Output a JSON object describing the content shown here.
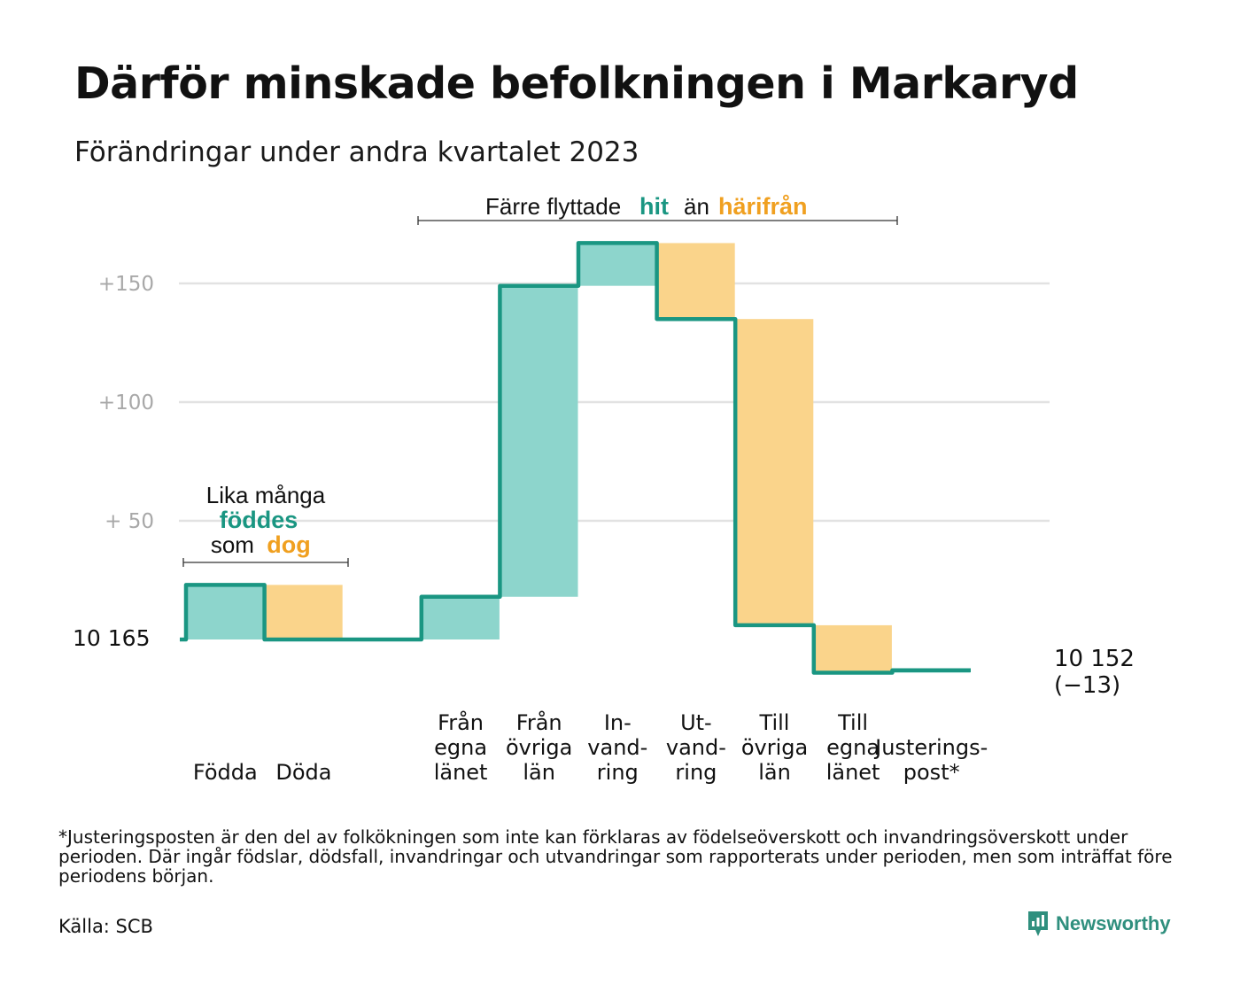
{
  "title": "Därför minskade befolkningen i Markaryd",
  "subtitle": "Förändringar under andra kvartalet 2023",
  "footnote": "*Justeringsposten är den del av folkökningen som inte kan förklaras av födelseöverskott och invandringsöverskott under perioden. Där ingår födslar, dödsfall, invandringar och utvandringar som rapporterats under perioden, men som inträffat före periodens början.",
  "source": "Källa: SCB",
  "brand": "Newsworthy",
  "colors": {
    "increase": "#8dd5cc",
    "decrease": "#fad48b",
    "line": "#1a9682",
    "hit_text": "#1a9682",
    "away_text": "#f0a020",
    "grid": "#e2e2e2",
    "tick_text": "#a8a8a8"
  },
  "chart_data": {
    "type": "waterfall",
    "start_label": "10  165",
    "start_value": 10165,
    "end_value": 10152,
    "end_label": "10 152",
    "end_change_label": "(−13)",
    "y_ticks": [
      {
        "offset": 50,
        "label": "+  50"
      },
      {
        "offset": 100,
        "label": "+100"
      },
      {
        "offset": 150,
        "label": "+150"
      }
    ],
    "grid": true,
    "steps": [
      {
        "lines": [
          "Födda"
        ],
        "value": 23
      },
      {
        "lines": [
          "Döda"
        ],
        "value": -23
      },
      {
        "lines": [],
        "value": 0
      },
      {
        "lines": [
          "Från",
          "egna",
          "länet"
        ],
        "value": 18
      },
      {
        "lines": [
          "Från",
          "övriga",
          "län"
        ],
        "value": 131
      },
      {
        "lines": [
          "In-",
          "vand-",
          "ring"
        ],
        "value": 18
      },
      {
        "lines": [
          "Ut-",
          "vand-",
          "ring"
        ],
        "value": -32
      },
      {
        "lines": [
          "Till",
          "övriga",
          "län"
        ],
        "value": -129
      },
      {
        "lines": [
          "Till",
          "egna",
          "länet"
        ],
        "value": -20
      },
      {
        "lines": [
          "Justerings-",
          "post*"
        ],
        "value": 1
      }
    ],
    "annotations": {
      "births": {
        "line1": "Lika många",
        "highlight1": "föddes",
        "prefix2": "som",
        "highlight2": "dog"
      },
      "moves": {
        "prefix": "Färre flyttade",
        "highlight1": "hit",
        "middle": "än",
        "highlight2": "härifrån"
      }
    }
  }
}
